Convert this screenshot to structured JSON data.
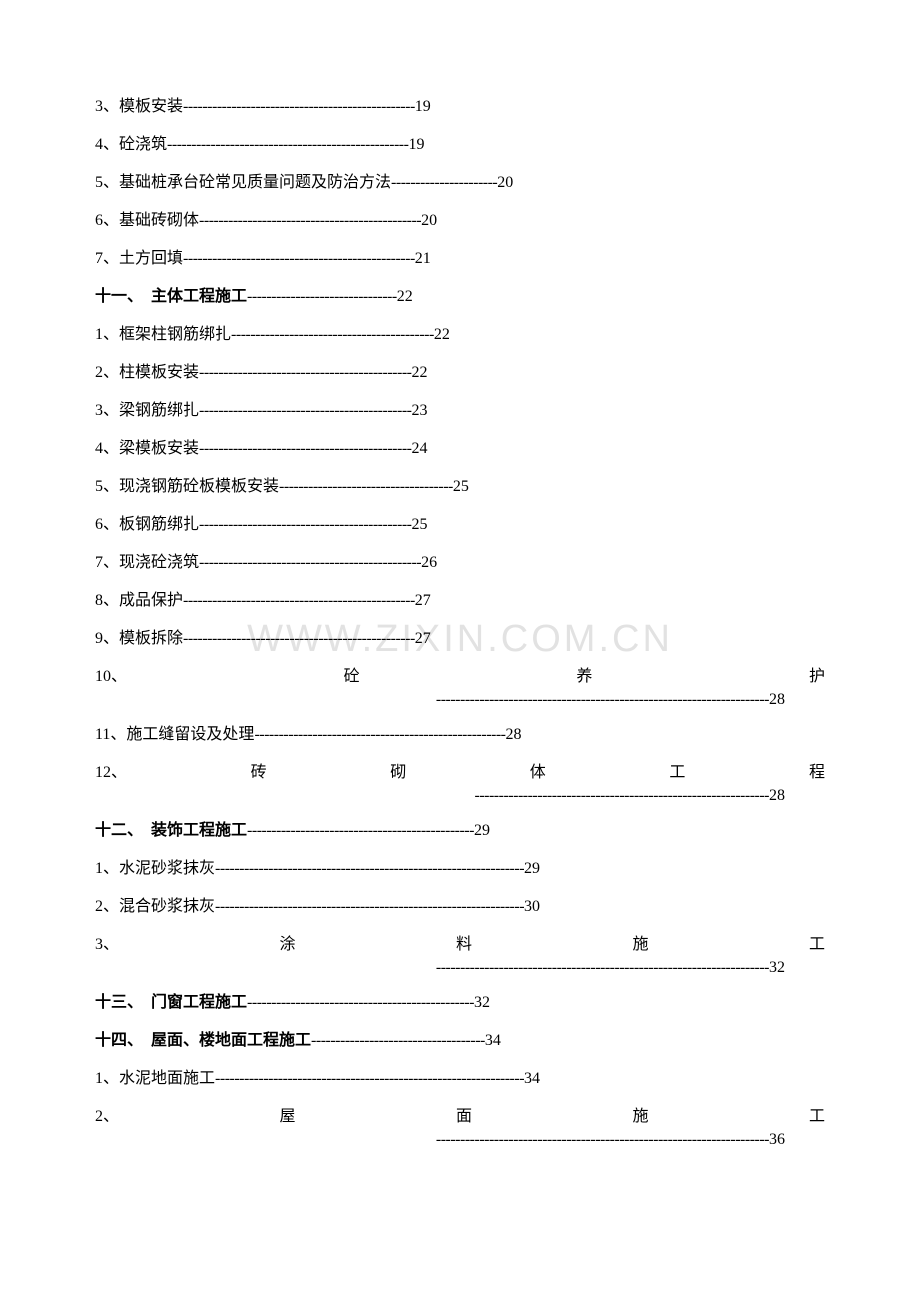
{
  "watermark": "WWW.ZIXIN.COM.CN",
  "items": [
    {
      "num": "3、",
      "label": "模板安装",
      "dashes": "------------------------------------------------",
      "page": "19",
      "type": "normal"
    },
    {
      "num": "4、",
      "label": "砼浇筑",
      "dashes": "--------------------------------------------------",
      "page": "19",
      "type": "normal"
    },
    {
      "num": "5、",
      "label": "基础桩承台砼常见质量问题及防治方法",
      "dashes": "----------------------",
      "page": "20",
      "type": "normal"
    },
    {
      "num": "6、",
      "label": "基础砖砌体",
      "dashes": "----------------------------------------------",
      "page": "20",
      "type": "normal"
    },
    {
      "num": "7、",
      "label": "土方回填",
      "dashes": "------------------------------------------------",
      "page": "21",
      "type": "normal"
    },
    {
      "num": "十一、　",
      "label": "主体工程施工",
      "dashes": "-------------------------------",
      "page": "22",
      "type": "section"
    },
    {
      "num": "1、",
      "label": "框架柱钢筋绑扎",
      "dashes": "------------------------------------------",
      "page": "22",
      "type": "normal"
    },
    {
      "num": "2、",
      "label": "柱模板安装",
      "dashes": "--------------------------------------------",
      "page": "22",
      "type": "normal"
    },
    {
      "num": "3、",
      "label": "梁钢筋绑扎",
      "dashes": "--------------------------------------------",
      "page": "23",
      "type": "normal"
    },
    {
      "num": "4、",
      "label": "梁模板安装",
      "dashes": "--------------------------------------------",
      "page": "24",
      "type": "normal"
    },
    {
      "num": "5、",
      "label": "现浇钢筋砼板模板安装",
      "dashes": "------------------------------------",
      "page": "25",
      "type": "normal"
    },
    {
      "num": "6、",
      "label": "板钢筋绑扎",
      "dashes": "--------------------------------------------",
      "page": "25",
      "type": "normal"
    },
    {
      "num": "7、",
      "label": "现浇砼浇筑",
      "dashes": "----------------------------------------------",
      "page": "26",
      "type": "normal"
    },
    {
      "num": "8、",
      "label": "成品保护",
      "dashes": "------------------------------------------------",
      "page": "27",
      "type": "normal"
    },
    {
      "num": "9、",
      "label": "模板拆除",
      "dashes": "------------------------------------------------",
      "page": "27",
      "type": "normal"
    },
    {
      "num": "10、",
      "label": "",
      "chars": [
        "砼",
        "养",
        "护"
      ],
      "dashes": "---------------------------------------------------------------------",
      "page": "28",
      "type": "spread"
    },
    {
      "num": "11、",
      "label": "施工缝留设及处理",
      "dashes": "----------------------------------------------------",
      "page": "28",
      "type": "normal"
    },
    {
      "num": "12、",
      "label": "",
      "chars": [
        "砖",
        "砌",
        "体",
        "工",
        "程"
      ],
      "dashes": "-------------------------------------------------------------",
      "page": "28",
      "type": "spread"
    },
    {
      "num": "十二、　",
      "label": "装饰工程施工",
      "dashes": "-----------------------------------------------",
      "page": "29",
      "type": "section"
    },
    {
      "num": "1、",
      "label": "水泥砂浆抹灰",
      "dashes": "----------------------------------------------------------------",
      "page": "29",
      "type": "normal"
    },
    {
      "num": "2、",
      "label": "混合砂浆抹灰",
      "dashes": "----------------------------------------------------------------",
      "page": "30",
      "type": "normal"
    },
    {
      "num": "3、",
      "label": "",
      "chars": [
        "涂",
        "料",
        "施",
        "工"
      ],
      "dashes": "---------------------------------------------------------------------",
      "page": "32",
      "type": "spread"
    },
    {
      "num": "十三、　",
      "label": "门窗工程施工",
      "dashes": "-----------------------------------------------",
      "page": "32",
      "type": "section"
    },
    {
      "num": "十四、　",
      "label": "屋面、楼地面工程施工",
      "dashes": "------------------------------------",
      "page": "34",
      "type": "section"
    },
    {
      "num": "1、",
      "label": "水泥地面施工",
      "dashes": "----------------------------------------------------------------",
      "page": "34",
      "type": "normal"
    },
    {
      "num": "2、",
      "label": "",
      "chars": [
        "屋",
        "面",
        "施",
        "工"
      ],
      "dashes": "---------------------------------------------------------------------",
      "page": "36",
      "type": "spread"
    }
  ]
}
